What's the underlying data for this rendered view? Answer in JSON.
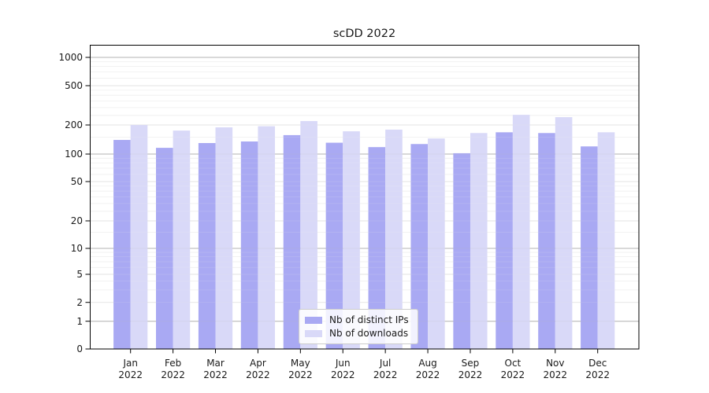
{
  "chart_data": {
    "type": "bar",
    "title": "scDD 2022",
    "categories": [
      "Jan",
      "Feb",
      "Mar",
      "Apr",
      "May",
      "Jun",
      "Jul",
      "Aug",
      "Sep",
      "Oct",
      "Nov",
      "Dec"
    ],
    "category_year": "2022",
    "series": [
      {
        "name": "Nb of distinct IPs",
        "color": "#a9a9f3",
        "values": [
          140,
          116,
          130,
          135,
          157,
          131,
          118,
          127,
          102,
          168,
          165,
          120
        ]
      },
      {
        "name": "Nb of downloads",
        "color": "#d9d9f8",
        "values": [
          200,
          175,
          189,
          194,
          219,
          172,
          179,
          145,
          165,
          254,
          240,
          168
        ]
      }
    ],
    "y_ticks": [
      "0",
      "1",
      "2",
      "5",
      "10",
      "20",
      "50",
      "100",
      "200",
      "500",
      "1000"
    ],
    "yscale": "symlog-like (log above 1, zero baseline)",
    "ylim": [
      0,
      1300
    ],
    "grid": true,
    "legend_position": "lower center"
  },
  "colors": {
    "background": "#ffffff",
    "axis": "#000000",
    "text": "#1a1a1a",
    "grid_major": "#b3b3b3",
    "grid_mid": "#e3e3e3",
    "grid_minor": "#efefef"
  }
}
